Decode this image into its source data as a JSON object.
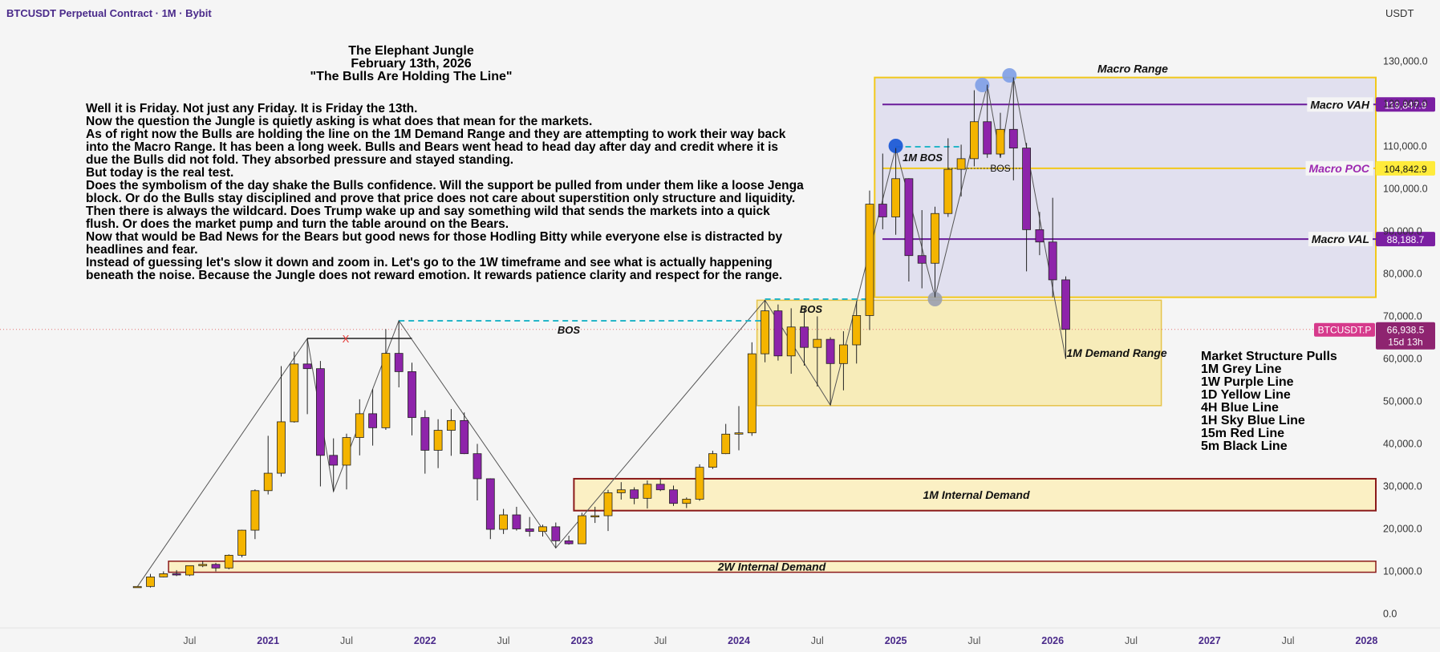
{
  "header": {
    "symbol": "BTCUSDT Perpetual Contract · 1M · Bybit",
    "currency": "USDT"
  },
  "title_lines": [
    "The Elephant Jungle",
    "February 13th, 2026",
    "\"The Bulls Are Holding The Line\""
  ],
  "story_lines": [
    "Well it is Friday. Not just any Friday. It is Friday the 13th.",
    "Now the question the Jungle is quietly asking is what does that mean for the markets.",
    "As of right now the Bulls are holding the line on the 1M Demand Range and they are attempting to work their way back",
    "into the Macro Range. It has been a long week. Bulls and Bears went head to head day after day and credit where it is",
    "due the Bulls did not fold. They absorbed pressure and stayed standing.",
    "But today is the real test.",
    "Does the symbolism of the day shake the Bulls confidence. Will the support be pulled from under them like a loose Jenga",
    "block. Or do the Bulls stay disciplined and prove that price does not care about superstition only structure and liquidity.",
    "Then there is always the wildcard. Does Trump wake up and say something wild that sends the markets into a quick",
    "flush. Or does the market pump and turn the table around on the Bears.",
    "Now that would be Bad News for the Bears but good news for those Hodling Bitty while everyone else is distracted by",
    "headlines and fear.",
    "Instead of guessing let's slow it down and zoom in. Let's go to the 1W timeframe and see what is actually happening",
    "beneath the noise. Because the Jungle does not reward emotion. It rewards patience clarity and respect for the range."
  ],
  "legend": {
    "title": "Market Structure Pulls",
    "items": [
      "1M Grey Line",
      "1W Purple Line",
      "1D Yellow Line",
      "4H Blue Line",
      "1H Sky Blue Line",
      "15m Red Line",
      "5m Black Line"
    ]
  },
  "colors": {
    "up": "#f4b400",
    "down": "#8e24aa",
    "macro": "#f2c81b",
    "purple": "#6a1b9a",
    "demand_fill": "#fbf0c4",
    "internal_border": "#8b1a1a",
    "cyan": "#26b6c8",
    "blue": "#1e5bd6",
    "red_marker": "#e53935"
  },
  "chart_data": {
    "type": "candlestick",
    "title": "",
    "xlabel": "",
    "ylabel": "USDT",
    "interval": "1M",
    "ylim": [
      0,
      140000
    ],
    "y_ticks": [
      "0.0",
      "10,000.0",
      "20,000.0",
      "30,000.0",
      "40,000.0",
      "50,000.0",
      "60,000.0",
      "70,000.0",
      "80,000.0",
      "90,000.0",
      "100,000.0",
      "110,000.0",
      "120,000.0",
      "130,000.0"
    ],
    "x_ticks": [
      {
        "label": "Jul",
        "date": "2020-07",
        "bold": false
      },
      {
        "label": "2021",
        "date": "2021-01",
        "bold": true
      },
      {
        "label": "Jul",
        "date": "2021-07",
        "bold": false
      },
      {
        "label": "2022",
        "date": "2022-01",
        "bold": true
      },
      {
        "label": "Jul",
        "date": "2022-07",
        "bold": false
      },
      {
        "label": "2023",
        "date": "2023-01",
        "bold": true
      },
      {
        "label": "Jul",
        "date": "2023-07",
        "bold": false
      },
      {
        "label": "2024",
        "date": "2024-01",
        "bold": true
      },
      {
        "label": "Jul",
        "date": "2024-07",
        "bold": false
      },
      {
        "label": "2025",
        "date": "2025-01",
        "bold": true
      },
      {
        "label": "Jul",
        "date": "2025-07",
        "bold": false
      },
      {
        "label": "2026",
        "date": "2026-01",
        "bold": true
      },
      {
        "label": "Jul",
        "date": "2026-07",
        "bold": false
      },
      {
        "label": "2027",
        "date": "2027-01",
        "bold": true
      },
      {
        "label": "Jul",
        "date": "2027-07",
        "bold": false
      },
      {
        "label": "2028",
        "date": "2028-01",
        "bold": true
      }
    ],
    "candles": [
      {
        "date": "2020-03",
        "o": 6400,
        "h": 6500,
        "l": 6300,
        "c": 6450
      },
      {
        "date": "2020-04",
        "o": 6450,
        "h": 9400,
        "l": 6200,
        "c": 8700
      },
      {
        "date": "2020-05",
        "o": 8700,
        "h": 10000,
        "l": 8600,
        "c": 9450
      },
      {
        "date": "2020-06",
        "o": 9450,
        "h": 10300,
        "l": 8900,
        "c": 9150
      },
      {
        "date": "2020-07",
        "o": 9150,
        "h": 11400,
        "l": 8900,
        "c": 11350
      },
      {
        "date": "2020-08",
        "o": 11350,
        "h": 12400,
        "l": 11000,
        "c": 11650
      },
      {
        "date": "2020-09",
        "o": 11650,
        "h": 12000,
        "l": 10000,
        "c": 10800
      },
      {
        "date": "2020-10",
        "o": 10800,
        "h": 14000,
        "l": 10500,
        "c": 13800
      },
      {
        "date": "2020-11",
        "o": 13800,
        "h": 19800,
        "l": 13300,
        "c": 19700
      },
      {
        "date": "2020-12",
        "o": 19700,
        "h": 29300,
        "l": 17600,
        "c": 29000
      },
      {
        "date": "2021-01",
        "o": 29000,
        "h": 41900,
        "l": 28100,
        "c": 33100
      },
      {
        "date": "2021-02",
        "o": 33100,
        "h": 58300,
        "l": 32300,
        "c": 45200
      },
      {
        "date": "2021-03",
        "o": 45200,
        "h": 61700,
        "l": 45000,
        "c": 58800
      },
      {
        "date": "2021-04",
        "o": 58800,
        "h": 64800,
        "l": 47000,
        "c": 57700
      },
      {
        "date": "2021-05",
        "o": 57700,
        "h": 59500,
        "l": 30000,
        "c": 37300
      },
      {
        "date": "2021-06",
        "o": 37300,
        "h": 41300,
        "l": 28800,
        "c": 35000
      },
      {
        "date": "2021-07",
        "o": 35000,
        "h": 42400,
        "l": 29300,
        "c": 41500
      },
      {
        "date": "2021-08",
        "o": 41500,
        "h": 50500,
        "l": 37300,
        "c": 47100
      },
      {
        "date": "2021-09",
        "o": 47100,
        "h": 52900,
        "l": 39600,
        "c": 43800
      },
      {
        "date": "2021-10",
        "o": 43800,
        "h": 67000,
        "l": 43300,
        "c": 61300
      },
      {
        "date": "2021-11",
        "o": 61300,
        "h": 69000,
        "l": 53300,
        "c": 57000
      },
      {
        "date": "2021-12",
        "o": 57000,
        "h": 59100,
        "l": 42000,
        "c": 46200
      },
      {
        "date": "2022-01",
        "o": 46200,
        "h": 47900,
        "l": 33000,
        "c": 38500
      },
      {
        "date": "2022-02",
        "o": 38500,
        "h": 45800,
        "l": 34300,
        "c": 43200
      },
      {
        "date": "2022-03",
        "o": 43200,
        "h": 48200,
        "l": 37200,
        "c": 45500
      },
      {
        "date": "2022-04",
        "o": 45500,
        "h": 47400,
        "l": 37600,
        "c": 37700
      },
      {
        "date": "2022-05",
        "o": 37700,
        "h": 40000,
        "l": 26700,
        "c": 31800
      },
      {
        "date": "2022-06",
        "o": 31800,
        "h": 31900,
        "l": 17600,
        "c": 19900
      },
      {
        "date": "2022-07",
        "o": 19900,
        "h": 24700,
        "l": 18800,
        "c": 23300
      },
      {
        "date": "2022-08",
        "o": 23300,
        "h": 25200,
        "l": 19600,
        "c": 20000
      },
      {
        "date": "2022-09",
        "o": 20000,
        "h": 22800,
        "l": 18200,
        "c": 19400
      },
      {
        "date": "2022-10",
        "o": 19400,
        "h": 21000,
        "l": 18200,
        "c": 20500
      },
      {
        "date": "2022-11",
        "o": 20500,
        "h": 21500,
        "l": 15500,
        "c": 17200
      },
      {
        "date": "2022-12",
        "o": 17200,
        "h": 18400,
        "l": 16300,
        "c": 16500
      },
      {
        "date": "2023-01",
        "o": 16500,
        "h": 23800,
        "l": 16500,
        "c": 23100
      },
      {
        "date": "2023-02",
        "o": 23100,
        "h": 25200,
        "l": 21400,
        "c": 23100
      },
      {
        "date": "2023-03",
        "o": 23100,
        "h": 29200,
        "l": 19500,
        "c": 28500
      },
      {
        "date": "2023-04",
        "o": 28500,
        "h": 31000,
        "l": 26900,
        "c": 29200
      },
      {
        "date": "2023-05",
        "o": 29200,
        "h": 29800,
        "l": 25800,
        "c": 27200
      },
      {
        "date": "2023-06",
        "o": 27200,
        "h": 31400,
        "l": 24800,
        "c": 30500
      },
      {
        "date": "2023-07",
        "o": 30500,
        "h": 31800,
        "l": 28900,
        "c": 29200
      },
      {
        "date": "2023-08",
        "o": 29200,
        "h": 30200,
        "l": 25400,
        "c": 26000
      },
      {
        "date": "2023-09",
        "o": 26000,
        "h": 27400,
        "l": 24900,
        "c": 27000
      },
      {
        "date": "2023-10",
        "o": 27000,
        "h": 35200,
        "l": 26600,
        "c": 34500
      },
      {
        "date": "2023-11",
        "o": 34500,
        "h": 38400,
        "l": 34100,
        "c": 37700
      },
      {
        "date": "2023-12",
        "o": 37700,
        "h": 44700,
        "l": 37600,
        "c": 42300
      },
      {
        "date": "2024-01",
        "o": 42300,
        "h": 48900,
        "l": 38500,
        "c": 42600
      },
      {
        "date": "2024-02",
        "o": 42600,
        "h": 63900,
        "l": 41900,
        "c": 61200
      },
      {
        "date": "2024-03",
        "o": 61200,
        "h": 73800,
        "l": 59200,
        "c": 71300
      },
      {
        "date": "2024-04",
        "o": 71300,
        "h": 72800,
        "l": 59600,
        "c": 60700
      },
      {
        "date": "2024-05",
        "o": 60700,
        "h": 71900,
        "l": 56500,
        "c": 67500
      },
      {
        "date": "2024-06",
        "o": 67500,
        "h": 72000,
        "l": 58400,
        "c": 62700
      },
      {
        "date": "2024-07",
        "o": 62700,
        "h": 70000,
        "l": 53500,
        "c": 64600
      },
      {
        "date": "2024-08",
        "o": 64600,
        "h": 65100,
        "l": 49100,
        "c": 58900
      },
      {
        "date": "2024-09",
        "o": 58900,
        "h": 66500,
        "l": 52600,
        "c": 63300
      },
      {
        "date": "2024-10",
        "o": 63300,
        "h": 73600,
        "l": 58900,
        "c": 70200
      },
      {
        "date": "2024-11",
        "o": 70200,
        "h": 99600,
        "l": 66800,
        "c": 96400
      },
      {
        "date": "2024-12",
        "o": 96400,
        "h": 108300,
        "l": 90500,
        "c": 93400
      },
      {
        "date": "2025-01",
        "o": 93400,
        "h": 109600,
        "l": 89200,
        "c": 102400
      },
      {
        "date": "2025-02",
        "o": 102400,
        "h": 102500,
        "l": 78200,
        "c": 84300
      },
      {
        "date": "2025-03",
        "o": 84300,
        "h": 95000,
        "l": 76600,
        "c": 82500
      },
      {
        "date": "2025-04",
        "o": 82500,
        "h": 95800,
        "l": 74500,
        "c": 94200
      },
      {
        "date": "2025-05",
        "o": 94200,
        "h": 111900,
        "l": 93400,
        "c": 104600
      },
      {
        "date": "2025-06",
        "o": 104600,
        "h": 110400,
        "l": 98200,
        "c": 107100
      },
      {
        "date": "2025-07",
        "o": 107100,
        "h": 123200,
        "l": 105300,
        "c": 115800
      },
      {
        "date": "2025-08",
        "o": 115800,
        "h": 124500,
        "l": 107300,
        "c": 108200
      },
      {
        "date": "2025-09",
        "o": 108200,
        "h": 117900,
        "l": 107300,
        "c": 114000
      },
      {
        "date": "2025-10",
        "o": 114000,
        "h": 126200,
        "l": 102000,
        "c": 109600
      },
      {
        "date": "2025-11",
        "o": 109600,
        "h": 110800,
        "l": 80600,
        "c": 90400
      },
      {
        "date": "2025-12",
        "o": 90400,
        "h": 94600,
        "l": 84400,
        "c": 87500
      },
      {
        "date": "2026-01",
        "o": 87500,
        "h": 97900,
        "l": 74500,
        "c": 78600
      },
      {
        "date": "2026-02",
        "o": 78600,
        "h": 79400,
        "l": 60000,
        "c": 66938.5
      }
    ],
    "levels": [
      {
        "name": "Macro VAH",
        "value": 119847.9,
        "label": "119,847.9"
      },
      {
        "name": "Macro POC",
        "value": 104842.9,
        "label": "104,842.9"
      },
      {
        "name": "Macro VAL",
        "value": 88188.7,
        "label": "88,188.7"
      }
    ],
    "current_price": {
      "symbol": "BTCUSDT.P",
      "value": 66938.5,
      "label": "66,938.5",
      "countdown": "15d 13h"
    },
    "zones": [
      {
        "name": "Macro Range",
        "from": "2024-12",
        "to": null,
        "low": 74500,
        "high": 126200
      },
      {
        "name": "1M Demand Range",
        "from": "2024-03",
        "to": "2026-09",
        "low": 49000,
        "high": 73800
      },
      {
        "name": "1M Internal Demand",
        "from": "2023-01",
        "to": null,
        "low": 24300,
        "high": 31800
      },
      {
        "name": "2W Internal Demand",
        "from": "2020-06",
        "to": null,
        "low": 9800,
        "high": 12400
      }
    ],
    "annotations": {
      "bos_left": "BOS",
      "bos_mid": "BOS",
      "bos_1m": "1M BOS",
      "bos_right": "BOS",
      "x_mark": "X"
    }
  }
}
